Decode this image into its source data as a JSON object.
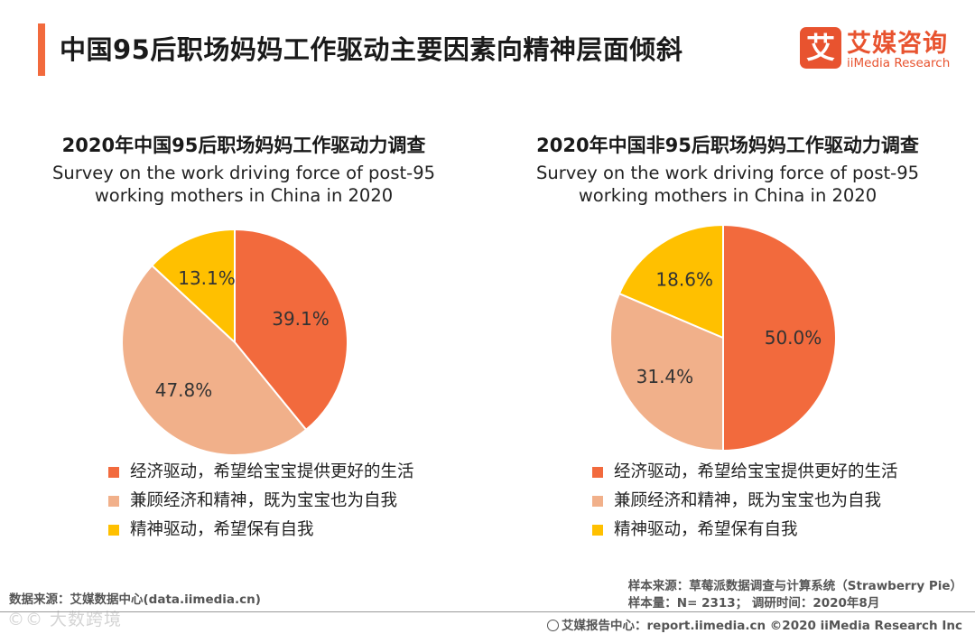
{
  "header": {
    "title": "中国95后职场妈妈工作驱动主要因素向精神层面倾斜",
    "accent_color": "#f26a3d"
  },
  "brand": {
    "logo_glyph": "艾",
    "name_cn": "艾媒咨询",
    "name_en": "iiMedia Research",
    "color": "#e8532f"
  },
  "chart_data": [
    {
      "type": "pie",
      "title": "2020年中国95后职场妈妈工作驱动力调查",
      "subtitle": "Survey on the work driving force of post-95 working mothers in China in 2020",
      "categories": [
        "经济驱动，希望给宝宝提供更好的生活",
        "兼顾经济和精神，既为宝宝也为自我",
        "精神驱动，希望保有自我"
      ],
      "values": [
        39.1,
        47.8,
        13.1
      ],
      "labels": [
        "39.1%",
        "47.8%",
        "13.1%"
      ],
      "colors": [
        "#f26a3d",
        "#f1b08a",
        "#ffc000"
      ]
    },
    {
      "type": "pie",
      "title": "2020年中国非95后职场妈妈工作驱动力调查",
      "subtitle": "Survey on the work driving force of post-95 working mothers in China in 2020",
      "categories": [
        "经济驱动，希望给宝宝提供更好的生活",
        "兼顾经济和精神，既为宝宝也为自我",
        "精神驱动，希望保有自我"
      ],
      "values": [
        50.0,
        31.4,
        18.6
      ],
      "labels": [
        "50.0%",
        "31.4%",
        "18.6%"
      ],
      "colors": [
        "#f26a3d",
        "#f1b08a",
        "#ffc000"
      ]
    }
  ],
  "footer": {
    "source_left": "数据来源：艾媒数据中心(data.iimedia.cn)",
    "sample_source": "样本来源：草莓派数据调查与计算系统（Strawberry Pie）",
    "sample_size": "样本量：N= 2313；  调研时间：2020年8月",
    "report_center": "艾媒报告中心：report.iimedia.cn   ©2020  iiMedia Research  Inc",
    "watermark": "©© 大数跨境"
  }
}
